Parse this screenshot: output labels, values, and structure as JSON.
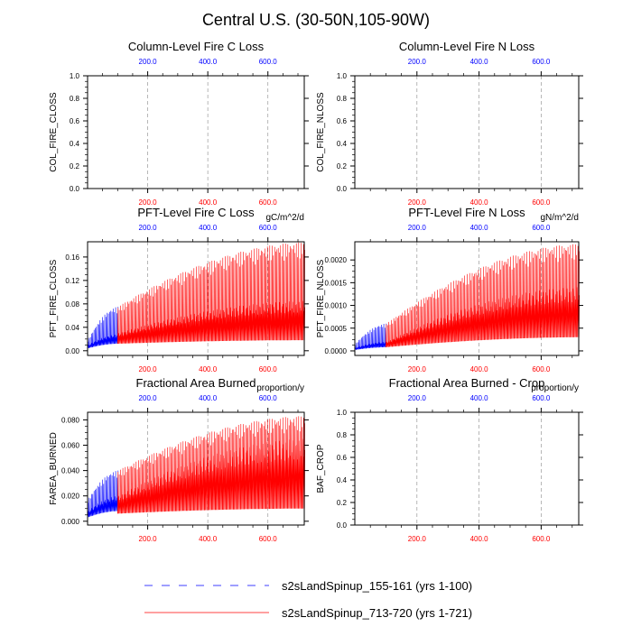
{
  "page_title": "Central U.S. (30-50N,105-90W)",
  "colors": {
    "blue": "#0000ff",
    "red": "#ff0000",
    "axis": "#000000",
    "grid": "#999999"
  },
  "legend": [
    {
      "label": "s2sLandSpinup_155-161 (yrs 1-100)",
      "color": "#0000ff",
      "style": "dashed"
    },
    {
      "label": "s2sLandSpinup_713-720 (yrs 1-721)",
      "color": "#ff0000",
      "style": "solid"
    }
  ],
  "chart_data": [
    {
      "type": "line",
      "title": "Column-Level Fire C Loss",
      "ylabel": "COL_FIRE_CLOSS",
      "units": "",
      "xlim": [
        0,
        721
      ],
      "ylim": [
        0,
        1
      ],
      "yticks": [
        0.0,
        0.2,
        0.4,
        0.6,
        0.8,
        1.0
      ],
      "ytick_labels": [
        "0.0",
        "0.2",
        "0.4",
        "0.6",
        "0.8",
        "1.0"
      ],
      "top_ticks": [
        "200.0",
        "400.0",
        "600.0"
      ],
      "bottom_ticks": [
        "200.0",
        "400.0",
        "600.0"
      ],
      "has_data": false,
      "series": []
    },
    {
      "type": "line",
      "title": "Column-Level Fire N Loss",
      "ylabel": "COL_FIRE_NLOSS",
      "units": "",
      "xlim": [
        0,
        721
      ],
      "ylim": [
        0,
        1
      ],
      "yticks": [
        0.0,
        0.2,
        0.4,
        0.6,
        0.8,
        1.0
      ],
      "ytick_labels": [
        "0.0",
        "0.2",
        "0.4",
        "0.6",
        "0.8",
        "1.0"
      ],
      "top_ticks": [
        "200.0",
        "400.0",
        "600.0"
      ],
      "bottom_ticks": [
        "200.0",
        "400.0",
        "600.0"
      ],
      "has_data": false,
      "series": []
    },
    {
      "type": "line",
      "title": "PFT-Level Fire C Loss",
      "ylabel": "PFT_FIRE_CLOSS",
      "units": "gC/m^2/d",
      "xlim": [
        0,
        721
      ],
      "ylim": [
        -0.008,
        0.186
      ],
      "yticks": [
        0.0,
        0.04,
        0.08,
        0.12,
        0.16
      ],
      "ytick_labels": [
        "0.00",
        "0.04",
        "0.08",
        "0.12",
        "0.16"
      ],
      "top_ticks": [
        "200.0",
        "400.0",
        "600.0"
      ],
      "bottom_ticks": [
        "200.0",
        "400.0",
        "600.0"
      ],
      "has_data": true,
      "series": [
        {
          "name": "s2sLandSpinup_155-161 (yrs 1-100)",
          "color": "#0000ff",
          "x_range": [
            0,
            100
          ],
          "start_max": 0.018,
          "end_max": 0.075,
          "start_min": 0.004,
          "end_min": 0.012,
          "start_mid": 0.01,
          "end_mid": 0.028
        },
        {
          "name": "s2sLandSpinup_713-720 (yrs 1-721)",
          "color": "#ff0000",
          "x_range": [
            100,
            721
          ],
          "start_max": 0.075,
          "end_max": 0.185,
          "start_min": 0.012,
          "end_min": 0.018,
          "start_mid": 0.03,
          "end_mid": 0.085
        }
      ]
    },
    {
      "type": "line",
      "title": "PFT-Level Fire N Loss",
      "ylabel": "PFT_FIRE_NLOSS",
      "units": "gN/m^2/d",
      "xlim": [
        0,
        721
      ],
      "ylim": [
        -0.0001,
        0.0024
      ],
      "yticks": [
        0.0,
        0.0005,
        0.001,
        0.0015,
        0.002
      ],
      "ytick_labels": [
        "0.0000",
        "0.0005",
        "0.0010",
        "0.0015",
        "0.0020"
      ],
      "top_ticks": [
        "200.0",
        "400.0",
        "600.0"
      ],
      "bottom_ticks": [
        "200.0",
        "400.0",
        "600.0"
      ],
      "has_data": true,
      "series": [
        {
          "name": "s2sLandSpinup_155-161 (yrs 1-100)",
          "color": "#0000ff",
          "x_range": [
            0,
            100
          ],
          "start_max": 0.00015,
          "end_max": 0.0006,
          "start_min": 2e-05,
          "end_min": 8e-05,
          "start_mid": 7e-05,
          "end_mid": 0.0002
        },
        {
          "name": "s2sLandSpinup_713-720 (yrs 1-721)",
          "color": "#ff0000",
          "x_range": [
            100,
            721
          ],
          "start_max": 0.0006,
          "end_max": 0.00235,
          "start_min": 8e-05,
          "end_min": 0.0003,
          "start_mid": 0.0002,
          "end_mid": 0.0014
        }
      ]
    },
    {
      "type": "line",
      "title": "Fractional Area Burned",
      "ylabel": "FAREA_BURNED",
      "units": "proportion/y",
      "xlim": [
        0,
        721
      ],
      "ylim": [
        -0.003,
        0.086
      ],
      "yticks": [
        0.0,
        0.02,
        0.04,
        0.06,
        0.08
      ],
      "ytick_labels": [
        "0.000",
        "0.020",
        "0.040",
        "0.060",
        "0.080"
      ],
      "top_ticks": [
        "200.0",
        "400.0",
        "600.0"
      ],
      "bottom_ticks": [
        "200.0",
        "400.0",
        "600.0"
      ],
      "has_data": true,
      "series": [
        {
          "name": "s2sLandSpinup_155-161 (yrs 1-100)",
          "color": "#0000ff",
          "x_range": [
            0,
            100
          ],
          "start_max": 0.017,
          "end_max": 0.04,
          "start_min": 0.003,
          "end_min": 0.008,
          "start_mid": 0.008,
          "end_mid": 0.02
        },
        {
          "name": "s2sLandSpinup_713-720 (yrs 1-721)",
          "color": "#ff0000",
          "x_range": [
            100,
            721
          ],
          "start_max": 0.04,
          "end_max": 0.083,
          "start_min": 0.006,
          "end_min": 0.01,
          "start_mid": 0.02,
          "end_mid": 0.065
        }
      ]
    },
    {
      "type": "line",
      "title": "Fractional Area Burned - Crop",
      "ylabel": "BAF_CROP",
      "units": "proportion/y",
      "xlim": [
        0,
        721
      ],
      "ylim": [
        0,
        1
      ],
      "yticks": [
        0.0,
        0.2,
        0.4,
        0.6,
        0.8,
        1.0
      ],
      "ytick_labels": [
        "0.0",
        "0.2",
        "0.4",
        "0.6",
        "0.8",
        "1.0"
      ],
      "top_ticks": [
        "200.0",
        "400.0",
        "600.0"
      ],
      "bottom_ticks": [
        "200.0",
        "400.0",
        "600.0"
      ],
      "has_data": false,
      "series": []
    }
  ]
}
